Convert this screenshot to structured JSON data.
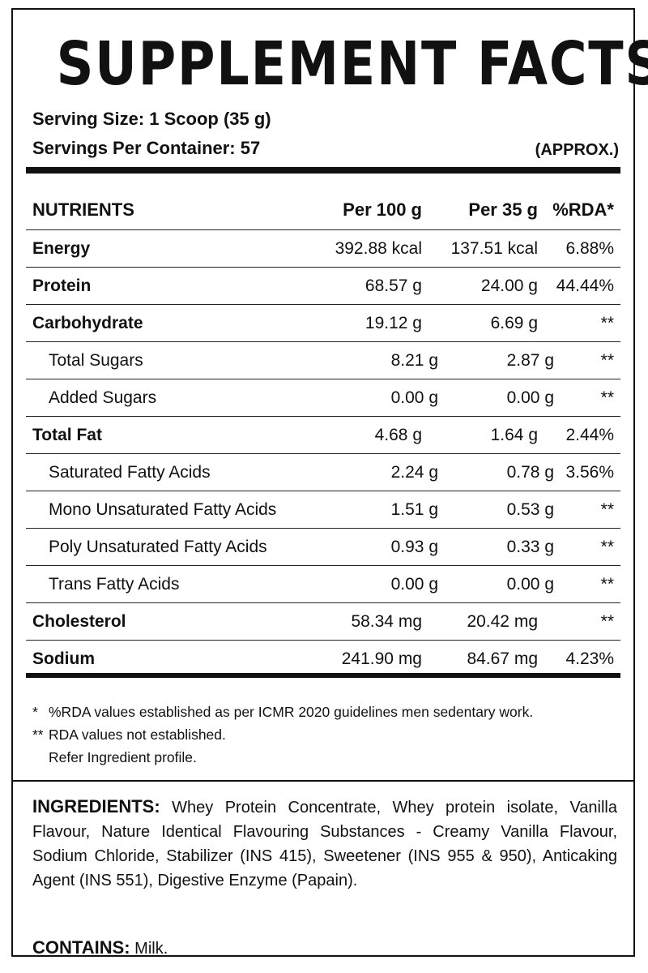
{
  "title": "SUPPLEMENT FACTS",
  "serving_size": "Serving Size: 1 Scoop (35 g)",
  "servings_per_container": "Servings Per Container: 57",
  "approx": "(APPROX.)",
  "table": {
    "headers": [
      "NUTRIENTS",
      "Per 100 g",
      "Per 35 g",
      "%RDA*"
    ],
    "rows": [
      {
        "name": "Energy",
        "per100": "392.88 kcal",
        "per35": "137.51 kcal",
        "rda": "6.88%"
      },
      {
        "name": "Protein",
        "per100": "68.57 g",
        "per35": "24.00 g",
        "rda": "44.44%"
      },
      {
        "name": "Carbohydrate",
        "per100": "19.12 g",
        "per35": "6.69 g",
        "rda": "**"
      },
      {
        "name": "Total Sugars",
        "per100": "8.21 g",
        "per35": "2.87 g",
        "rda": "**"
      },
      {
        "name": "Added Sugars",
        "per100": "0.00 g",
        "per35": "0.00 g",
        "rda": "**"
      },
      {
        "name": "Total Fat",
        "per100": "4.68 g",
        "per35": "1.64 g",
        "rda": "2.44%"
      },
      {
        "name": "Saturated Fatty Acids",
        "per100": "2.24 g",
        "per35": "0.78 g",
        "rda": "3.56%"
      },
      {
        "name": "Mono Unsaturated Fatty Acids",
        "per100": "1.51 g",
        "per35": "0.53 g",
        "rda": "**"
      },
      {
        "name": "Poly Unsaturated Fatty Acids",
        "per100": "0.93 g",
        "per35": "0.33 g",
        "rda": "**"
      },
      {
        "name": "Trans Fatty Acids",
        "per100": "0.00 g",
        "per35": "0.00 g",
        "rda": "**"
      },
      {
        "name": "Cholesterol",
        "per100": "58.34 mg",
        "per35": "20.42 mg",
        "rda": "**"
      },
      {
        "name": "Sodium",
        "per100": "241.90 mg",
        "per35": "84.67 mg",
        "rda": "4.23%"
      }
    ]
  },
  "notes": {
    "note1_marker": "*",
    "note1": "%RDA values established as per ICMR 2020 guidelines men sedentary work.",
    "note2_marker": "**",
    "note2": "RDA values not established.",
    "note3": "Refer Ingredient profile."
  },
  "ingredients": {
    "lead": "INGREDIENTS:",
    "text": "Whey Protein Concentrate, Whey protein isolate, Vanilla Flavour, Nature Identical Flavouring Substances - Creamy Vanilla Flavour, Sodium Chloride, Stabilizer (INS 415), Sweetener (INS 955 & 950), Anticaking Agent (INS 551), Digestive Enzyme (Papain)."
  },
  "contains": {
    "lead": "CONTAINS:",
    "text": "Milk."
  }
}
